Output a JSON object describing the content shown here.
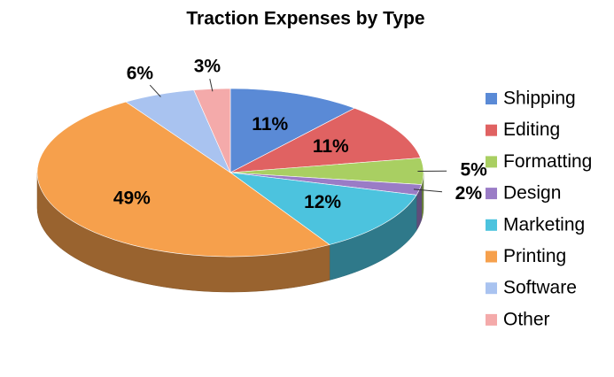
{
  "chart_data": {
    "type": "pie3d",
    "title": "Traction Expenses by Type",
    "categories": [
      "Shipping",
      "Editing",
      "Formatting",
      "Design",
      "Marketing",
      "Printing",
      "Software",
      "Other"
    ],
    "values": [
      11,
      11,
      5,
      2,
      12,
      49,
      6,
      3
    ],
    "value_labels": [
      "11%",
      "11%",
      "5%",
      "2%",
      "12%",
      "49%",
      "6%",
      "3%"
    ],
    "colors": [
      "#5a8ad6",
      "#e06262",
      "#a9cf62",
      "#9a7cc6",
      "#4cc3de",
      "#f6a04c",
      "#a9c3f0",
      "#f4aaaa"
    ],
    "legend": "right"
  }
}
